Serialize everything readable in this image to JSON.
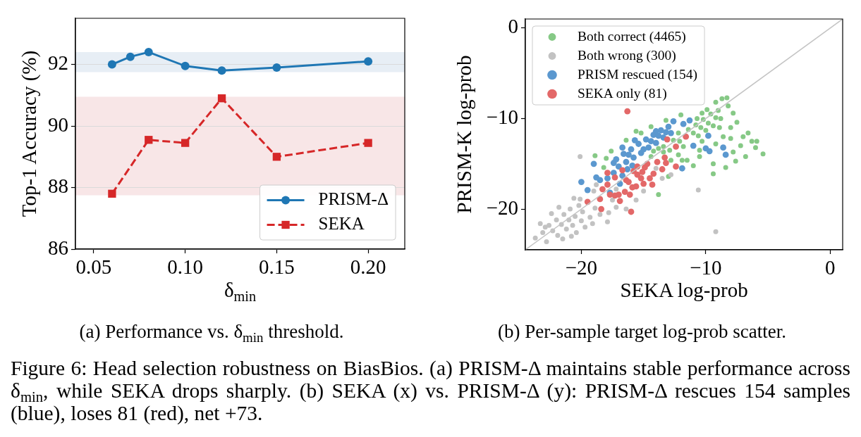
{
  "chart_data": [
    {
      "type": "line",
      "title": "(a) Performance vs. δ$_{min}$ threshold.",
      "xlabel": "δ$_{min}$",
      "ylabel": "Top-1 Accuracy (%)",
      "x": [
        0.06,
        0.07,
        0.08,
        0.1,
        0.12,
        0.15,
        0.2
      ],
      "series": [
        {
          "name": "PRISM-Δ",
          "color": "#1f77b4",
          "marker": "circle",
          "line_style": "solid",
          "values": [
            92.0,
            92.25,
            92.4,
            91.95,
            91.8,
            91.9,
            92.1
          ]
        },
        {
          "name": "SEKA",
          "color": "#d62728",
          "marker": "square",
          "line_style": "dashed",
          "x": [
            0.06,
            0.08,
            0.1,
            0.12,
            0.15,
            0.2
          ],
          "values": [
            87.8,
            89.55,
            89.45,
            90.9,
            89.0,
            89.45
          ]
        }
      ],
      "xlim": [
        0.04,
        0.22
      ],
      "ylim": [
        86,
        93.5
      ],
      "xticks": [
        0.05,
        {
          "value": 0.1,
          "label": "0.10"
        },
        0.15,
        {
          "value": 0.2,
          "label": "0.20"
        }
      ],
      "yticks": [
        86,
        88,
        90,
        92
      ],
      "bands": [
        {
          "axis": "y",
          "from": 91.75,
          "to": 92.4,
          "color": "#e7eef5"
        },
        {
          "axis": "y",
          "from": 87.75,
          "to": 90.95,
          "color": "#f8e6e7"
        }
      ],
      "grid": "y",
      "legend": "bottom right"
    },
    {
      "type": "scatter",
      "title": "(b) Per-sample target log-prob scatter.",
      "xlabel": "SEKA log-prob",
      "ylabel": "PRISM-K log-prob",
      "marker": "circle",
      "legend": "top left",
      "xlim": [
        -24.5,
        1
      ],
      "ylim": [
        -24.5,
        1
      ],
      "xticks": [
        {
          "value": -20,
          "label": "−20"
        },
        {
          "value": -10,
          "label": "−10"
        },
        0
      ],
      "yticks": [
        {
          "value": -20,
          "label": "−20"
        },
        {
          "value": -10,
          "label": "−10"
        },
        0
      ],
      "series": [
        {
          "name": "Both correct (4465)",
          "color": "#86c986",
          "x": [
            -14.4,
            -14.2,
            -13.8,
            -13.4,
            -13.4,
            -12.9,
            -12.6,
            -12.1,
            -12.2,
            -11.4,
            -11.0,
            -10.8,
            -10.7,
            -10.4,
            -10.2,
            -10.3,
            -9.8,
            -9.6,
            -9.9,
            -9.2,
            -9.0,
            -8.8,
            -12.8,
            -12.2,
            -11.8,
            -10.6,
            -10.0,
            -9.4,
            -8.9,
            -8.7,
            -8.3,
            -8.2,
            -7.5,
            -6.6,
            -6.3,
            -5.9,
            -5.4,
            -7.8,
            -7.6,
            -9.4,
            -8.4,
            -9.4,
            -13.8,
            -18.9,
            -18.2,
            -8.0,
            -7.2,
            -6.8,
            -8.0,
            -7.0,
            -9.2,
            -10.5,
            -11.0,
            -11.5,
            -15.2,
            -14.4,
            -13.2,
            -12.0,
            -9.2,
            -13.0,
            -16.4,
            -17.6,
            -18.0,
            -15.6,
            -7.8,
            -6.0,
            -8.6,
            -10.3,
            -10.5,
            -11.9
          ],
          "values": [
            -14.2,
            -13.6,
            -13.3,
            -13.7,
            -13.1,
            -13.5,
            -12.4,
            -12.5,
            -11.6,
            -11.2,
            -11.6,
            -10.7,
            -10.0,
            -11.0,
            -10.1,
            -9.4,
            -10.5,
            -9.5,
            -9.0,
            -9.9,
            -9.1,
            -10.0,
            -14.6,
            -14.0,
            -13.1,
            -11.9,
            -11.3,
            -10.8,
            -11.0,
            -7.8,
            -7.7,
            -8.6,
            -10.4,
            -11.6,
            -12.5,
            -12.5,
            -13.9,
            -13.7,
            -14.7,
            -15.0,
            -15.4,
            -16.1,
            -18.4,
            -14.1,
            -15.4,
            -12.2,
            -13.0,
            -14.2,
            -11.0,
            -12.0,
            -12.8,
            -14.2,
            -15.2,
            -14.6,
            -11.6,
            -10.9,
            -10.2,
            -9.6,
            -8.2,
            -16.4,
            -12.4,
            -13.6,
            -14.4,
            -11.4,
            -9.4,
            -13.2,
            -12.0,
            -12.5,
            -13.5,
            -14.6
          ]
        },
        {
          "name": "Both wrong (300)",
          "color": "#c2c2c2",
          "x": [
            -23.7,
            -23.1,
            -22.6,
            -22.8,
            -22.3,
            -22.0,
            -21.9,
            -21.6,
            -21.4,
            -21.2,
            -21.0,
            -20.9,
            -20.7,
            -20.5,
            -20.4,
            -20.2,
            -20.0,
            -19.9,
            -19.7,
            -20.1,
            -19.3,
            -19.1,
            -18.9,
            -18.8,
            -18.5,
            -17.8,
            -17.5,
            -17.2,
            -17.2,
            -15.6,
            -15.0,
            -13.5,
            -20.1,
            -10.6,
            -9.2,
            -22.4,
            -21.8,
            -23.3,
            -22.9,
            -21.5,
            -20.8,
            -19.0,
            -17.9,
            -16.4,
            -20.6,
            -14.0,
            -12.8
          ],
          "values": [
            -23.2,
            -22.6,
            -21.8,
            -23.6,
            -22.4,
            -21.2,
            -22.9,
            -21.7,
            -20.6,
            -22.2,
            -21.2,
            -20.0,
            -21.8,
            -20.8,
            -22.6,
            -19.6,
            -21.3,
            -20.3,
            -22.0,
            -18.9,
            -20.9,
            -21.6,
            -19.9,
            -17.3,
            -20.6,
            -20.4,
            -19.0,
            -17.8,
            -19.8,
            -19.0,
            -18.0,
            -16.6,
            -14.2,
            -17.9,
            -22.5,
            -20.5,
            -19.8,
            -21.6,
            -22.0,
            -23.3,
            -23.0,
            -18.0,
            -21.4,
            -20.0,
            -18.8,
            -15.5,
            -16.2
          ]
        },
        {
          "name": "PRISM rescued (154)",
          "color": "#5b98cf",
          "x": [
            -17.2,
            -17.0,
            -16.6,
            -16.4,
            -16.0,
            -15.8,
            -15.4,
            -15.2,
            -14.8,
            -14.6,
            -14.2,
            -14.0,
            -13.6,
            -13.4,
            -13.0,
            -12.8,
            -12.6,
            -11.8,
            -11.3,
            -9.8,
            -11.0,
            -10.0,
            -9.7,
            -8.6,
            -8.4,
            -11.9,
            -16.7,
            -19.0,
            -20.0,
            -19.5,
            -18.8,
            -17.7,
            -17.4,
            -17.9,
            -18.5,
            -15.9,
            -16.3,
            -14.4,
            -13.8,
            -16.2,
            -17.4,
            -15.0,
            -13.2,
            -14.0,
            -15.7,
            -16.7,
            -16.9
          ],
          "values": [
            -14.5,
            -15.3,
            -13.9,
            -14.8,
            -13.4,
            -14.3,
            -12.8,
            -13.8,
            -12.3,
            -13.2,
            -11.8,
            -12.7,
            -11.3,
            -12.1,
            -10.9,
            -11.6,
            -10.3,
            -10.6,
            -10.2,
            -11.9,
            -13.0,
            -13.3,
            -13.6,
            -13.2,
            -14.0,
            -15.5,
            -13.2,
            -15.0,
            -17.0,
            -17.9,
            -16.5,
            -18.2,
            -16.0,
            -16.6,
            -16.8,
            -15.2,
            -15.6,
            -12.5,
            -11.9,
            -14.0,
            -14.9,
            -13.4,
            -11.5,
            -11.4,
            -12.4,
            -16.3,
            -17.2
          ]
        },
        {
          "name": "SEKA only (81)",
          "color": "#e36868",
          "x": [
            -16.3,
            -11.6,
            -13.1,
            -12.4,
            -12.4,
            -13.3,
            -13.9,
            -13.5,
            -14.2,
            -14.3,
            -14.9,
            -15.5,
            -15.6,
            -15.9,
            -16.1,
            -16.5,
            -17.0,
            -16.9,
            -17.3,
            -17.7,
            -18.3,
            -18.5,
            -19.5,
            -18.4,
            -16.0,
            -17.9,
            -17.3,
            -17.9,
            -16.7,
            -15.5,
            -15.1,
            -14.7,
            -15.2,
            -15.0,
            -16.4,
            -16.2,
            -15.8,
            -14.5,
            -13.2
          ],
          "values": [
            -9.2,
            -12.0,
            -12.3,
            -13.1,
            -15.3,
            -14.3,
            -14.8,
            -15.6,
            -16.1,
            -17.3,
            -15.4,
            -16.2,
            -17.5,
            -17.6,
            -18.4,
            -18.1,
            -18.4,
            -19.1,
            -18.5,
            -18.4,
            -17.8,
            -18.9,
            -19.2,
            -20.0,
            -20.3,
            -16.0,
            -16.5,
            -17.3,
            -15.7,
            -15.3,
            -15.9,
            -15.0,
            -16.6,
            -17.2,
            -16.8,
            -17.0,
            -15.8,
            -16.6,
            -14.9
          ]
        },
        {
          "type": "line",
          "color": "#c4c4c4",
          "marker": "none",
          "x": [
            -24.5,
            1
          ],
          "values": [
            -24.5,
            1
          ]
        }
      ],
      "annotations": [
        "Figure 6: Head selection robustness on BiasBios. (a) PRISM-Δ maintains stable performance across δ$_{min}$, while SEKA drops sharply. (b) SEKA (x) vs. PRISM-Δ (y): PRISM-Δ rescues 154 samples (blue), loses 81 (red), net +73."
      ]
    }
  ]
}
